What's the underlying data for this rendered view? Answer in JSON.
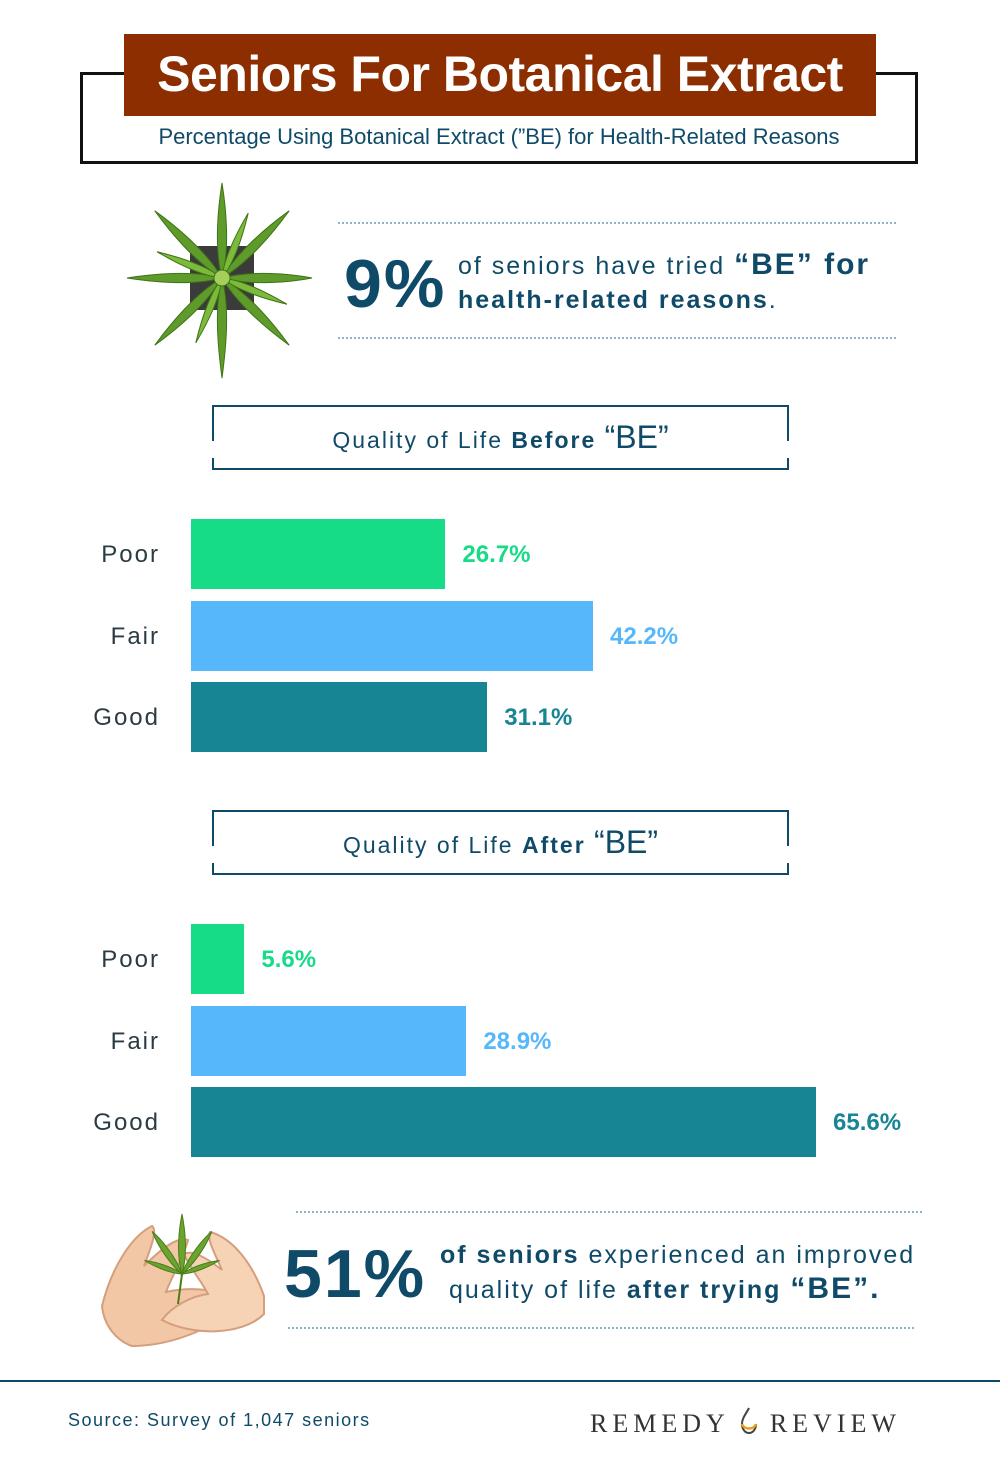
{
  "header": {
    "title": "Seniors For Botanical Extract",
    "subtitle": "Percentage Using Botanical Extract (”BE) for Health-Related Reasons"
  },
  "stat_top": {
    "big": "9%",
    "line1_plain": "of seniors have tried",
    "line1_bold": "“BE” for",
    "line2_bold": "health-related reasons",
    "line2_end": "."
  },
  "stat_bottom": {
    "big": "51%",
    "line1_bold": "of seniors",
    "line1_plain": "experienced an improved",
    "line2_plain": "quality of life",
    "line2_bold": "after trying",
    "line2_be": "“BE”."
  },
  "chart_data": [
    {
      "type": "bar",
      "orientation": "horizontal",
      "title_plain": "Quality of Life",
      "title_bold": "Before",
      "title_be": "“BE”",
      "categories": [
        "Poor",
        "Fair",
        "Good"
      ],
      "values": [
        26.7,
        42.2,
        31.1
      ],
      "value_labels": [
        "26.7%",
        "42.2%",
        "31.1%"
      ],
      "colors": [
        "#16db87",
        "#56b8fb",
        "#178594"
      ]
    },
    {
      "type": "bar",
      "orientation": "horizontal",
      "title_plain": "Quality of Life",
      "title_bold": "After",
      "title_be": "“BE”",
      "categories": [
        "Poor",
        "Fair",
        "Good"
      ],
      "values": [
        5.6,
        28.9,
        65.6
      ],
      "value_labels": [
        "5.6%",
        "28.9%",
        "65.6%"
      ],
      "colors": [
        "#16db87",
        "#56b8fb",
        "#178594"
      ]
    }
  ],
  "footer": {
    "source": "Source: Survey of 1,047 seniors",
    "brand_left": "REMEDY",
    "brand_right": "REVIEW"
  },
  "icons": {
    "top": "cannabis-plant-icon",
    "bottom": "hands-holding-leaf-icon",
    "brand": "drop-icon"
  }
}
